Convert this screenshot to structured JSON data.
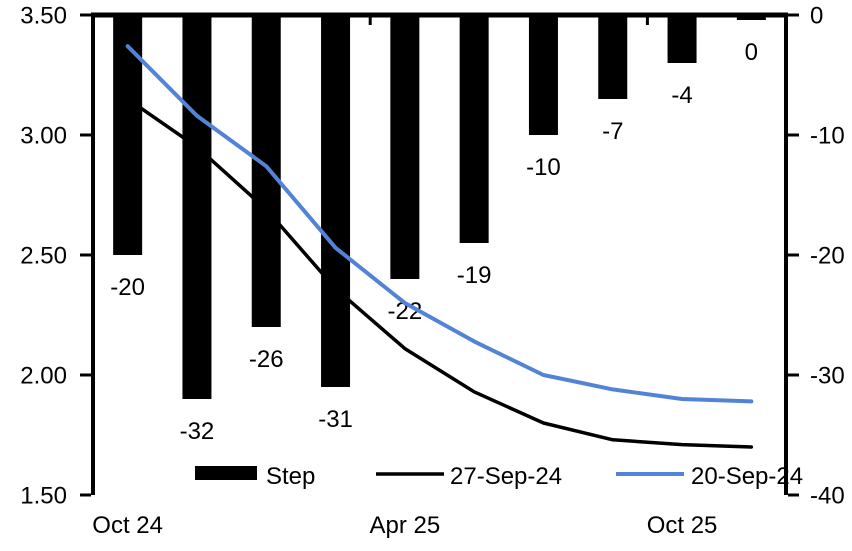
{
  "chart_data": {
    "type": "bar",
    "combo": "bar + line, dual axis",
    "n_categories": 10,
    "x_tick_labels": [
      {
        "index": 0,
        "label": "Oct 24"
      },
      {
        "index": 4,
        "label": "Apr 25"
      },
      {
        "index": 8,
        "label": "Oct 25"
      }
    ],
    "x_group_boundaries": [
      4,
      8
    ],
    "bar_series": {
      "name": "Step",
      "axis": "right",
      "color": "#000000",
      "values": [
        -20,
        -32,
        -26,
        -31,
        -22,
        -19,
        -10,
        -7,
        -4,
        0
      ],
      "data_labels": [
        "-20",
        "-32",
        "-26",
        "-31",
        "-22",
        "-19",
        "-10",
        "-7",
        "-4",
        "0"
      ]
    },
    "line_series": [
      {
        "name": "27-Sep-24",
        "axis": "left",
        "color": "#000000",
        "width": 3.5,
        "values": [
          3.15,
          2.95,
          2.69,
          2.36,
          2.11,
          1.93,
          1.8,
          1.73,
          1.71,
          1.7
        ]
      },
      {
        "name": "20-Sep-24",
        "axis": "left",
        "color": "#5383D6",
        "width": 4,
        "values": [
          3.37,
          3.08,
          2.87,
          2.53,
          2.3,
          2.14,
          2.0,
          1.94,
          1.9,
          1.89
        ]
      }
    ],
    "left_axis": {
      "min": 1.5,
      "max": 3.5,
      "tick_labels": [
        "3.50",
        "3.00",
        "2.50",
        "2.00",
        "1.50"
      ]
    },
    "right_axis": {
      "min": -40,
      "max": 0,
      "tick_labels": [
        "0",
        "-10",
        "-20",
        "-30",
        "-40"
      ]
    },
    "legend": [
      {
        "label": "Step",
        "swatch": "bar",
        "color": "#000000"
      },
      {
        "label": "27-Sep-24",
        "swatch": "line",
        "color": "#000000"
      },
      {
        "label": "20-Sep-24",
        "swatch": "line",
        "color": "#5383D6"
      }
    ],
    "legend_position": "bottom",
    "grid": false,
    "title": "",
    "axis_color": "#000000",
    "text_color": "#000000"
  }
}
